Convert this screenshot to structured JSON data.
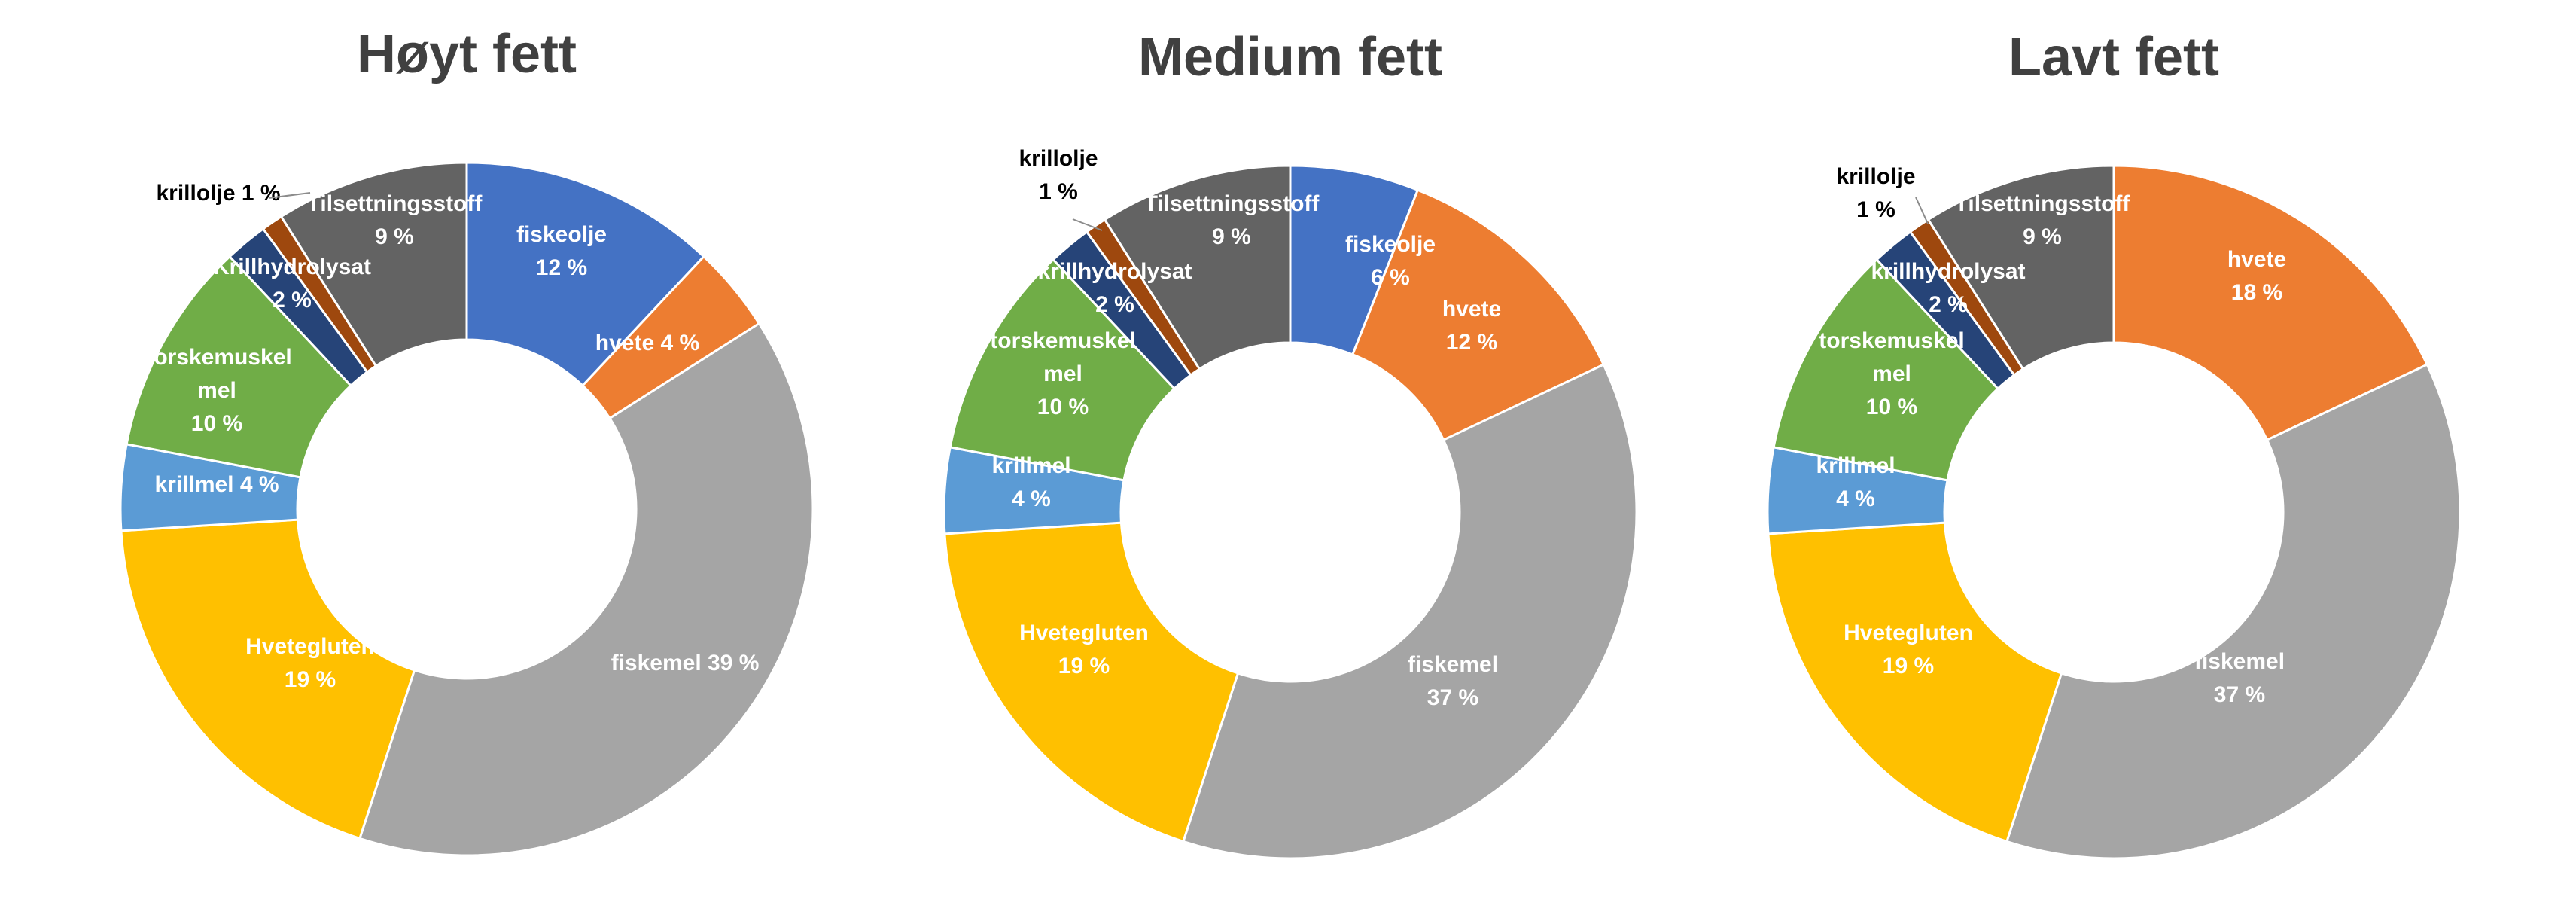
{
  "chart_data": [
    {
      "type": "pie",
      "title": "Høyt fett",
      "slices": [
        {
          "name": "fiskeolje",
          "value": 12,
          "label": [
            "fiskeolje",
            "12 %"
          ],
          "color": "#4472C4"
        },
        {
          "name": "hvete",
          "value": 4,
          "label": [
            "hvete 4 %"
          ],
          "color": "#ED7D31"
        },
        {
          "name": "fiskemel",
          "value": 39,
          "label": [
            "fiskemel 39 %"
          ],
          "color": "#A5A5A5"
        },
        {
          "name": "Hvetegluten",
          "value": 19,
          "label": [
            "Hvetegluten",
            "19 %"
          ],
          "color": "#FFC000"
        },
        {
          "name": "krillmel",
          "value": 4,
          "label": [
            "krillmel 4 %"
          ],
          "color": "#5B9BD5"
        },
        {
          "name": "Torskemuskel mel",
          "value": 10,
          "label": [
            "Torskemuskel",
            "mel",
            "10 %"
          ],
          "color": "#70AD47"
        },
        {
          "name": "Krillhydrolysat",
          "value": 2,
          "label": [
            "Krillhydrolysat",
            "2 %"
          ],
          "color": "#264478"
        },
        {
          "name": "krillolje",
          "value": 1,
          "label": [
            "krillolje 1 %"
          ],
          "color": "#9E480E"
        },
        {
          "name": "Tilsettningsstoff",
          "value": 9,
          "label": [
            "Tilsettningsstoff",
            "9 %"
          ],
          "color": "#636363"
        }
      ]
    },
    {
      "type": "pie",
      "title": "Medium fett",
      "slices": [
        {
          "name": "fiskeolje",
          "value": 6,
          "label": [
            "fiskeolje",
            "6 %"
          ],
          "color": "#4472C4"
        },
        {
          "name": "hvete",
          "value": 12,
          "label": [
            "hvete",
            "12 %"
          ],
          "color": "#ED7D31"
        },
        {
          "name": "fiskemel",
          "value": 37,
          "label": [
            "fiskemel",
            "37 %"
          ],
          "color": "#A5A5A5"
        },
        {
          "name": "Hvetegluten",
          "value": 19,
          "label": [
            "Hvetegluten",
            "19 %"
          ],
          "color": "#FFC000"
        },
        {
          "name": "krillmel",
          "value": 4,
          "label": [
            "krillmel",
            "4 %"
          ],
          "color": "#5B9BD5"
        },
        {
          "name": "torskemuskel mel",
          "value": 10,
          "label": [
            "torskemuskel",
            "mel",
            "10 %"
          ],
          "color": "#70AD47"
        },
        {
          "name": "krillhydrolysat",
          "value": 2,
          "label": [
            "krillhydrolysat",
            "2 %"
          ],
          "color": "#264478"
        },
        {
          "name": "krillolje",
          "value": 1,
          "label": [
            "krillolje",
            "1 %"
          ],
          "color": "#9E480E"
        },
        {
          "name": "Tilsettningsstoff",
          "value": 9,
          "label": [
            "Tilsettningsstoff",
            "9 %"
          ],
          "color": "#636363"
        }
      ]
    },
    {
      "type": "pie",
      "title": "Lavt fett",
      "slices": [
        {
          "name": "hvete",
          "value": 18,
          "label": [
            "hvete",
            "18 %"
          ],
          "color": "#ED7D31"
        },
        {
          "name": "fiskemel",
          "value": 37,
          "label": [
            "fiskemel",
            "37 %"
          ],
          "color": "#A5A5A5"
        },
        {
          "name": "Hvetegluten",
          "value": 19,
          "label": [
            "Hvetegluten",
            "19 %"
          ],
          "color": "#FFC000"
        },
        {
          "name": "krillmel",
          "value": 4,
          "label": [
            "krillmel",
            "4 %"
          ],
          "color": "#5B9BD5"
        },
        {
          "name": "torskemuskel mel",
          "value": 10,
          "label": [
            "torskemuskel",
            "mel",
            "10 %"
          ],
          "color": "#70AD47"
        },
        {
          "name": "krillhydrolysat",
          "value": 2,
          "label": [
            "krillhydrolysat",
            "2 %"
          ],
          "color": "#264478"
        },
        {
          "name": "krillolje",
          "value": 1,
          "label": [
            "krillolje",
            "1 %"
          ],
          "color": "#9E480E"
        },
        {
          "name": "Tilsettningsstoff",
          "value": 9,
          "label": [
            "Tilsettningsstoff",
            "9 %"
          ],
          "color": "#636363"
        }
      ]
    }
  ]
}
